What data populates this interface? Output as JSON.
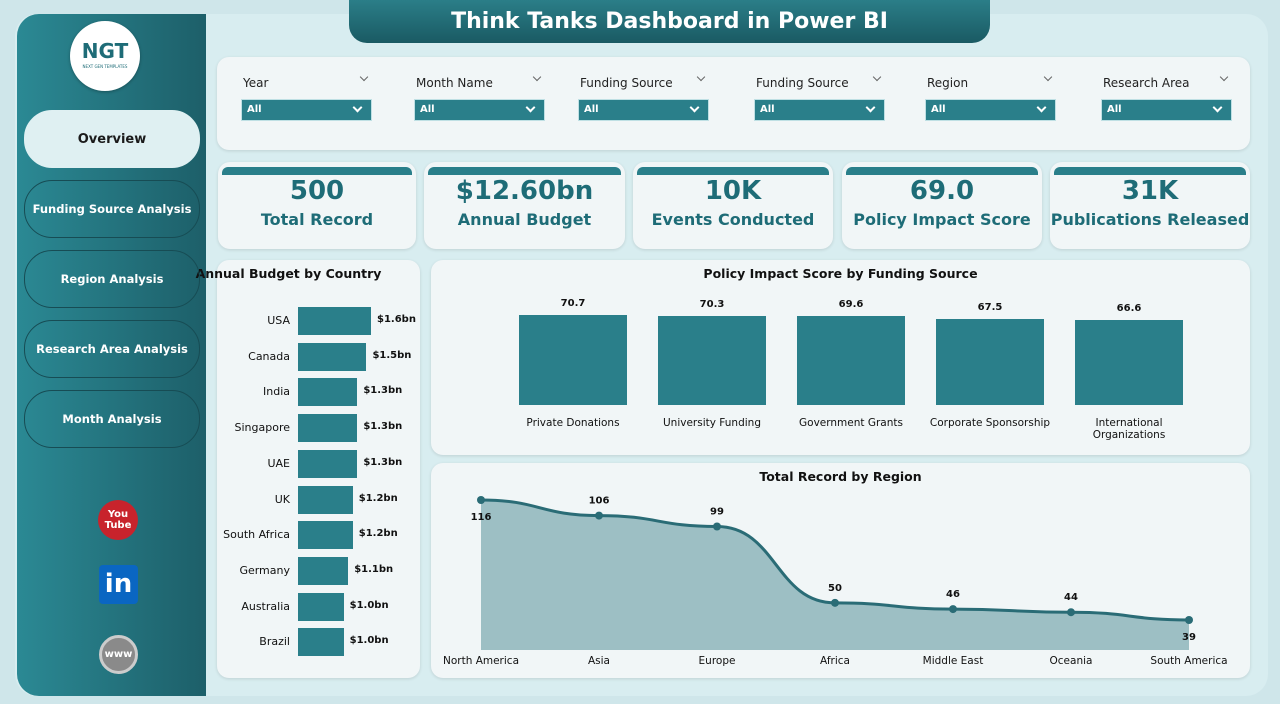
{
  "header": {
    "title": "Think Tanks Dashboard in Power BI",
    "logo": "NGT",
    "logo_sub": "NEXT GEN TEMPLATES"
  },
  "nav": [
    "Overview",
    "Funding Source Analysis",
    "Region Analysis",
    "Research Area Analysis",
    "Month Analysis"
  ],
  "social": {
    "youtube": [
      "You",
      "Tube"
    ],
    "linkedin": "in",
    "web": "www"
  },
  "filters": [
    {
      "label": "Year",
      "value": "All"
    },
    {
      "label": "Month Name",
      "value": "All"
    },
    {
      "label": "Funding Source",
      "value": "All"
    },
    {
      "label": "Funding Source",
      "value": "All"
    },
    {
      "label": "Region",
      "value": "All"
    },
    {
      "label": "Research Area",
      "value": "All"
    }
  ],
  "kpis": [
    {
      "value": "500",
      "label": "Total Record"
    },
    {
      "value": "$12.60bn",
      "label": "Annual Budget"
    },
    {
      "value": "10K",
      "label": "Events Conducted"
    },
    {
      "value": "69.0",
      "label": "Policy Impact Score"
    },
    {
      "value": "31K",
      "label": "Publications Released"
    }
  ],
  "chart_data": [
    {
      "type": "bar",
      "orientation": "horizontal",
      "title": "Annual Budget by Country",
      "color": "#2a7f8a",
      "categories": [
        "USA",
        "Canada",
        "India",
        "Singapore",
        "UAE",
        "UK",
        "South Africa",
        "Germany",
        "Australia",
        "Brazil"
      ],
      "values": [
        1.6,
        1.5,
        1.3,
        1.3,
        1.3,
        1.2,
        1.2,
        1.1,
        1.0,
        1.0
      ],
      "value_labels": [
        "$1.6bn",
        "$1.5bn",
        "$1.3bn",
        "$1.3bn",
        "$1.3bn",
        "$1.2bn",
        "$1.2bn",
        "$1.1bn",
        "$1.0bn",
        "$1.0bn"
      ]
    },
    {
      "type": "bar",
      "orientation": "vertical",
      "title": "Policy Impact Score by Funding Source",
      "color": "#2a7f8a",
      "categories": [
        "Private Donations",
        "University Funding",
        "Government Grants",
        "Corporate Sponsorship",
        "International Organizations"
      ],
      "values": [
        70.7,
        70.3,
        69.6,
        67.5,
        66.6
      ]
    },
    {
      "type": "area",
      "title": "Total Record by Region",
      "color": "#2a6c76",
      "fill": "#9dbfc4",
      "categories": [
        "North America",
        "Asia",
        "Europe",
        "Africa",
        "Middle East",
        "Oceania",
        "South America"
      ],
      "values": [
        116,
        106,
        99,
        50,
        46,
        44,
        39
      ]
    }
  ]
}
